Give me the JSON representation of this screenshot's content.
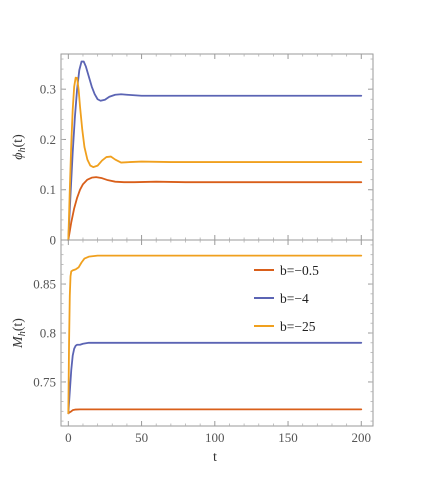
{
  "chart_data": [
    {
      "type": "line",
      "panel": "top",
      "ylabel_main": "ϕ",
      "ylabel_sub": "h",
      "ylabel_tail": "(t)",
      "xlim": [
        -5,
        208
      ],
      "ylim": [
        0,
        0.37
      ],
      "xticks": [
        0,
        50,
        100,
        150,
        200
      ],
      "yticks": [
        0,
        0.1,
        0.2,
        0.3
      ],
      "ytick_labels": [
        "0",
        "0.1",
        "0.2",
        "0.3"
      ],
      "grid": false,
      "series": [
        {
          "name": "b=−0.5",
          "color": "#d95f1a",
          "points": [
            [
              0,
              0
            ],
            [
              2,
              0.035
            ],
            [
              4,
              0.063
            ],
            [
              6,
              0.084
            ],
            [
              8,
              0.1
            ],
            [
              10,
              0.111
            ],
            [
              13,
              0.12
            ],
            [
              16,
              0.124
            ],
            [
              19,
              0.125
            ],
            [
              23,
              0.123
            ],
            [
              27,
              0.119
            ],
            [
              32,
              0.116
            ],
            [
              38,
              0.115
            ],
            [
              45,
              0.115
            ],
            [
              60,
              0.116
            ],
            [
              80,
              0.115
            ],
            [
              100,
              0.115
            ],
            [
              150,
              0.115
            ],
            [
              200,
              0.115
            ]
          ]
        },
        {
          "name": "b=−4",
          "color": "#5b64b4",
          "points": [
            [
              0,
              0
            ],
            [
              1.5,
              0.09
            ],
            [
              3,
              0.175
            ],
            [
              4.5,
              0.245
            ],
            [
              6,
              0.3
            ],
            [
              7.5,
              0.338
            ],
            [
              9,
              0.355
            ],
            [
              10.5,
              0.355
            ],
            [
              12,
              0.345
            ],
            [
              14,
              0.325
            ],
            [
              16,
              0.305
            ],
            [
              18,
              0.29
            ],
            [
              20,
              0.28
            ],
            [
              22,
              0.277
            ],
            [
              25,
              0.279
            ],
            [
              28,
              0.285
            ],
            [
              32,
              0.289
            ],
            [
              36,
              0.29
            ],
            [
              40,
              0.289
            ],
            [
              50,
              0.287
            ],
            [
              60,
              0.287
            ],
            [
              100,
              0.287
            ],
            [
              150,
              0.287
            ],
            [
              200,
              0.287
            ]
          ]
        },
        {
          "name": "b=−25",
          "color": "#f0a01e",
          "points": [
            [
              0,
              0
            ],
            [
              1,
              0.1
            ],
            [
              2,
              0.19
            ],
            [
              3,
              0.26
            ],
            [
              4,
              0.305
            ],
            [
              5,
              0.323
            ],
            [
              6,
              0.322
            ],
            [
              7,
              0.3
            ],
            [
              8,
              0.265
            ],
            [
              9.5,
              0.22
            ],
            [
              11,
              0.185
            ],
            [
              13,
              0.16
            ],
            [
              15,
              0.148
            ],
            [
              17,
              0.145
            ],
            [
              20,
              0.148
            ],
            [
              23,
              0.158
            ],
            [
              26,
              0.165
            ],
            [
              29,
              0.166
            ],
            [
              32,
              0.16
            ],
            [
              36,
              0.154
            ],
            [
              42,
              0.155
            ],
            [
              50,
              0.156
            ],
            [
              70,
              0.155
            ],
            [
              100,
              0.155
            ],
            [
              150,
              0.155
            ],
            [
              200,
              0.155
            ]
          ]
        }
      ]
    },
    {
      "type": "line",
      "panel": "bottom",
      "ylabel_main": "M",
      "ylabel_sub": "h",
      "ylabel_tail": "(t)",
      "xlabel": "t",
      "xlim": [
        -5,
        208
      ],
      "ylim": [
        0.705,
        0.895
      ],
      "xticks": [
        0,
        50,
        100,
        150,
        200
      ],
      "xtick_labels": [
        "0",
        "50",
        "100",
        "150",
        "200"
      ],
      "yticks": [
        0.75,
        0.8,
        0.85
      ],
      "ytick_labels": [
        "0.75",
        "0.8",
        "0.85"
      ],
      "grid": false,
      "legend": "right",
      "series": [
        {
          "name": "b=−0.5",
          "color": "#d95f1a",
          "points": [
            [
              0,
              0.718
            ],
            [
              1,
              0.719
            ],
            [
              2,
              0.72
            ],
            [
              3,
              0.7212
            ],
            [
              5,
              0.7218
            ],
            [
              8,
              0.722
            ],
            [
              20,
              0.722
            ],
            [
              100,
              0.722
            ],
            [
              200,
              0.722
            ]
          ]
        },
        {
          "name": "b=−4",
          "color": "#5b64b4",
          "points": [
            [
              0,
              0.718
            ],
            [
              1,
              0.74
            ],
            [
              2,
              0.762
            ],
            [
              3,
              0.777
            ],
            [
              4,
              0.784
            ],
            [
              5,
              0.787
            ],
            [
              6,
              0.788
            ],
            [
              8,
              0.788
            ],
            [
              10,
              0.789
            ],
            [
              14,
              0.79
            ],
            [
              20,
              0.79
            ],
            [
              100,
              0.79
            ],
            [
              200,
              0.79
            ]
          ]
        },
        {
          "name": "b=−25",
          "color": "#f0a01e",
          "points": [
            [
              0,
              0.718
            ],
            [
              0.5,
              0.79
            ],
            [
              1,
              0.838
            ],
            [
              1.5,
              0.858
            ],
            [
              2,
              0.863
            ],
            [
              3,
              0.864
            ],
            [
              5,
              0.865
            ],
            [
              7,
              0.867
            ],
            [
              9,
              0.872
            ],
            [
              11,
              0.876
            ],
            [
              14,
              0.878
            ],
            [
              20,
              0.879
            ],
            [
              100,
              0.879
            ],
            [
              200,
              0.879
            ]
          ]
        }
      ]
    }
  ]
}
